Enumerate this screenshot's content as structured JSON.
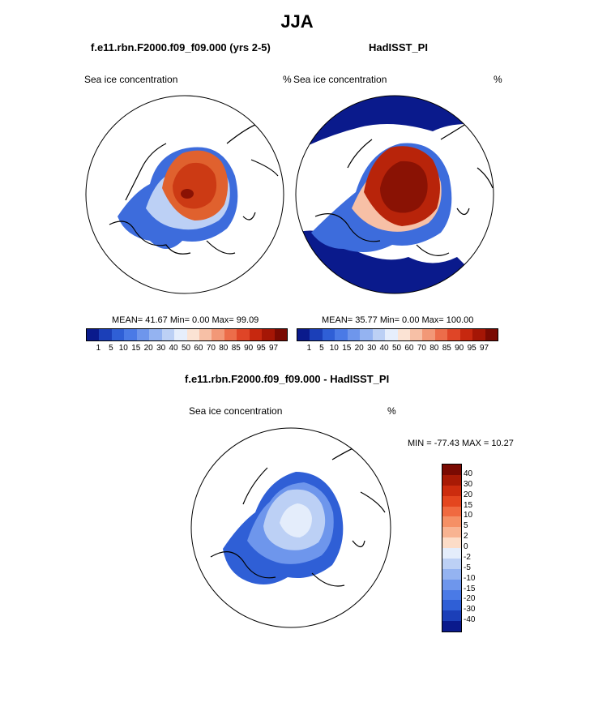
{
  "header": {
    "season": "JJA",
    "model_title": "f.e11.rbn.F2000.f09_f09.000 (yrs 2-5)",
    "obs_title": "HadISST_PI",
    "diff_title": "f.e11.rbn.F2000.f09_f09.000 - HadISST_PI"
  },
  "panels": {
    "left": {
      "variable": "Sea ice concentration",
      "units": "%",
      "stats": "MEAN=  41.67  Min=   0.00  Max=  99.09"
    },
    "right": {
      "variable": "Sea ice concentration",
      "units": "%",
      "stats": "MEAN=  35.77  Min=   0.00  Max= 100.00"
    },
    "bottom": {
      "variable": "Sea ice concentration",
      "units": "%",
      "minmax": "MIN = -77.43 MAX =  10.27"
    }
  },
  "chart_data": [
    {
      "type": "heatmap",
      "title": "f.e11.rbn.F2000.f09_f09.000 (yrs 2-5)",
      "projection": "north-polar-stereographic",
      "variable": "Sea ice concentration",
      "units": "%",
      "mean": 41.67,
      "min": 0.0,
      "max": 99.09,
      "colorbar_ticks": [
        "1",
        "5",
        "10",
        "15",
        "20",
        "30",
        "40",
        "50",
        "60",
        "70",
        "80",
        "85",
        "90",
        "95",
        "97"
      ],
      "colors": [
        "#0a1a8c",
        "#1b3fb8",
        "#2f5fd6",
        "#4a7ae6",
        "#6e96ec",
        "#94b3f1",
        "#bcd0f5",
        "#e6eefc",
        "#fbe3d4",
        "#f7c0a6",
        "#f29877",
        "#ec6d4a",
        "#df4527",
        "#c7280f",
        "#a51605",
        "#7a0a02"
      ]
    },
    {
      "type": "heatmap",
      "title": "HadISST_PI",
      "projection": "north-polar-stereographic",
      "variable": "Sea ice concentration",
      "units": "%",
      "mean": 35.77,
      "min": 0.0,
      "max": 100.0,
      "colorbar_ticks": [
        "1",
        "5",
        "10",
        "15",
        "20",
        "30",
        "40",
        "50",
        "60",
        "70",
        "80",
        "85",
        "90",
        "95",
        "97"
      ],
      "colors": [
        "#0a1a8c",
        "#1b3fb8",
        "#2f5fd6",
        "#4a7ae6",
        "#6e96ec",
        "#94b3f1",
        "#bcd0f5",
        "#e6eefc",
        "#fbe3d4",
        "#f7c0a6",
        "#f29877",
        "#ec6d4a",
        "#df4527",
        "#c7280f",
        "#a51605",
        "#7a0a02"
      ]
    },
    {
      "type": "heatmap",
      "title": "f.e11.rbn.F2000.f09_f09.000 - HadISST_PI",
      "projection": "north-polar-stereographic",
      "variable": "Sea ice concentration",
      "units": "%",
      "min": -77.43,
      "max": 10.27,
      "colorbar_ticks": [
        "40",
        "30",
        "20",
        "15",
        "10",
        "5",
        "2",
        "0",
        "-2",
        "-5",
        "-10",
        "-15",
        "-20",
        "-30",
        "-40"
      ],
      "colors": [
        "#7a0a02",
        "#a81a05",
        "#cc2c0e",
        "#e4461f",
        "#f06a40",
        "#f59065",
        "#f8b391",
        "#fcdcc7",
        "#e4edfb",
        "#bcd0f5",
        "#94b3f1",
        "#6e96ec",
        "#4a7ae6",
        "#2f5fd6",
        "#1b3fb8",
        "#0a1a8c"
      ]
    }
  ]
}
